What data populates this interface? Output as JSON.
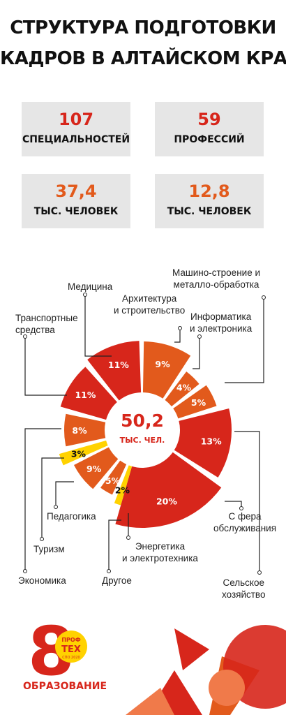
{
  "title": {
    "line1": "СТРУКТУРА ПОДГОТОВКИ",
    "line2": "КАДРОВ В АЛТАЙСКОМ КРАЕ"
  },
  "stats": [
    {
      "value": "107",
      "label": "СПЕЦИАЛЬНОСТЕЙ"
    },
    {
      "value": "59",
      "label": "ПРОФЕССИЙ"
    },
    {
      "value": "37,4",
      "label": "ТЫС. ЧЕЛОВЕК"
    },
    {
      "value": "12,8",
      "label": "ТЫС. ЧЕЛОВЕК"
    }
  ],
  "colors": {
    "red": "#d7261b",
    "orange": "#e25a1c",
    "yellow": "#ffd200",
    "panel": "#e6e6e6"
  },
  "chart_data": {
    "type": "pie",
    "center_value": "50,2",
    "center_unit": "ТЫС. ЧЕЛ.",
    "categories": [
      "Архитектура\nи строительство",
      "Машино-строение и\nметалло-обработка",
      "Информатика\nи электроника",
      "Сельское\nхозяйство",
      "С фера\nобслуживания",
      "Энергетика\nи электротехника",
      "Другое",
      "Педагогика",
      "Туризм",
      "Экономика",
      "Транспортные\nсредства",
      "Медицина"
    ],
    "values": [
      9,
      4,
      5,
      13,
      20,
      2,
      5,
      9,
      3,
      8,
      11,
      11
    ],
    "value_labels": [
      "9%",
      "4%",
      "5%",
      "13%",
      "20%",
      "2%",
      "5%",
      "9%",
      "3%",
      "8%",
      "11%",
      "11%"
    ]
  },
  "logo": {
    "number": "8",
    "badge_top": "ПРОФ",
    "badge_main": "ТЕХ",
    "badge_sub": "СПО 2020",
    "caption": "ОБРАЗОВАНИЕ"
  }
}
